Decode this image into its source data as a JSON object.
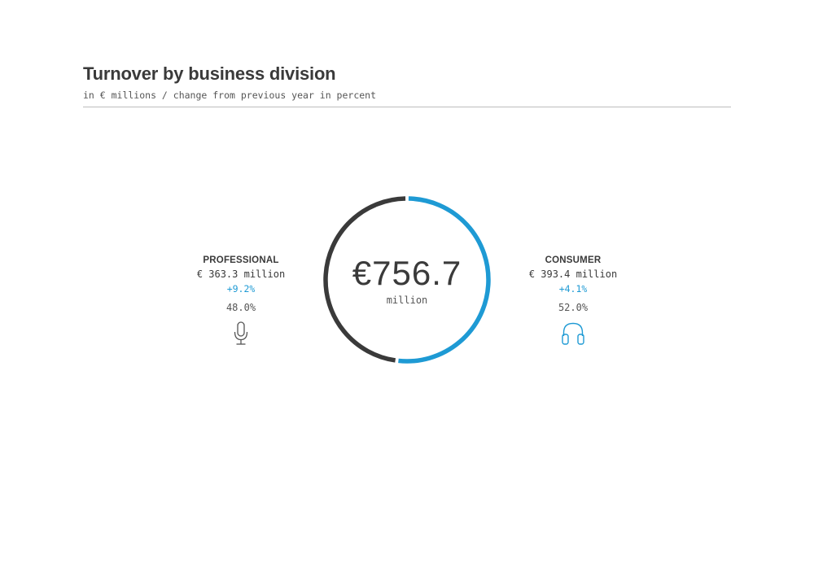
{
  "header": {
    "title": "Turnover by business division",
    "subtitle": "in € millions / change from previous year in percent"
  },
  "chart_data": {
    "type": "pie",
    "title": "Turnover by business division",
    "subtitle": "in € millions / change from previous year in percent",
    "total": {
      "value": "€756.7",
      "unit": "million",
      "numeric": 756.7
    },
    "series": [
      {
        "name": "PROFESSIONAL",
        "value": 363.3,
        "amount_label": "€ 363.3 million",
        "change_label": "+9.2%",
        "share": 48.0,
        "share_label": "48.0%",
        "color": "#3a3a3a",
        "icon": "microphone-icon"
      },
      {
        "name": "CONSUMER",
        "value": 393.4,
        "amount_label": "€ 393.4 million",
        "change_label": "+4.1%",
        "share": 52.0,
        "share_label": "52.0%",
        "color": "#1e9ad4",
        "icon": "headphones-icon"
      }
    ]
  }
}
